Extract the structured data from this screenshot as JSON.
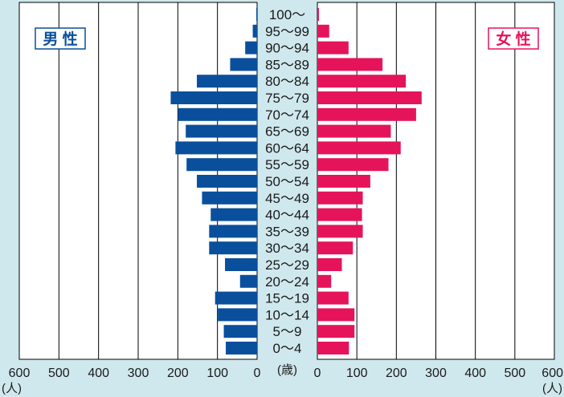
{
  "chart_data": {
    "type": "bar",
    "subtype": "population-pyramid",
    "categories": [
      "0〜4",
      "5〜9",
      "10〜14",
      "15〜19",
      "20〜24",
      "25〜29",
      "30〜34",
      "35〜39",
      "40〜44",
      "45〜49",
      "50〜54",
      "55〜59",
      "60〜64",
      "65〜69",
      "70〜74",
      "75〜79",
      "80〜84",
      "85〜89",
      "90〜94",
      "95〜99",
      "100〜"
    ],
    "series": [
      {
        "name": "男 性",
        "side": "left",
        "color": "#0a4f9c",
        "values": [
          79,
          84,
          99,
          106,
          43,
          81,
          121,
          121,
          117,
          139,
          152,
          178,
          206,
          180,
          200,
          218,
          152,
          68,
          30,
          11,
          2
        ]
      },
      {
        "name": "女 性",
        "side": "right",
        "color": "#e5145a",
        "values": [
          80,
          94,
          94,
          79,
          35,
          62,
          90,
          115,
          113,
          115,
          134,
          180,
          211,
          186,
          250,
          264,
          224,
          165,
          79,
          30,
          4
        ]
      }
    ],
    "x_ticks_left": [
      "600",
      "500",
      "400",
      "300",
      "200",
      "100",
      "0"
    ],
    "x_ticks_right": [
      "0",
      "100",
      "200",
      "300",
      "400",
      "500",
      "600"
    ],
    "xlim": [
      0,
      600
    ],
    "unit_left": "(人)",
    "unit_right": "(人)",
    "center_unit": "(歳)",
    "grid": true
  }
}
